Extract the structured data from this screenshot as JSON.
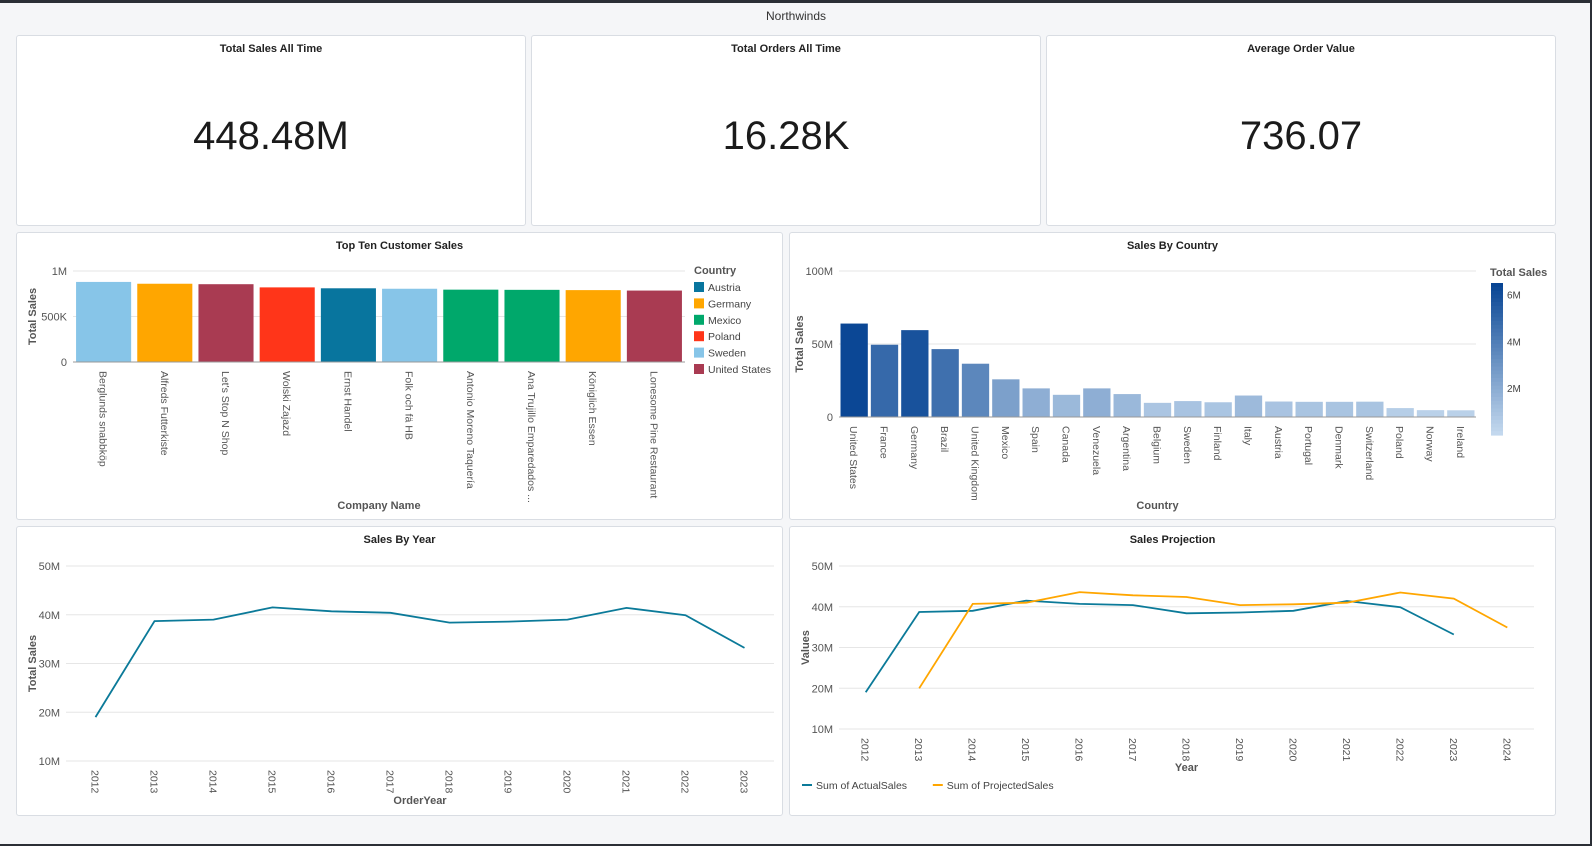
{
  "app_title": "Northwinds",
  "kpis": [
    {
      "title": "Total Sales All Time",
      "value": "448.48M"
    },
    {
      "title": "Total Orders All Time",
      "value": "16.28K"
    },
    {
      "title": "Average Order Value",
      "value": "736.07"
    }
  ],
  "chart_data": [
    {
      "type": "bar",
      "title": "Top Ten Customer Sales",
      "xlabel": "Company Name",
      "ylabel": "Total Sales",
      "ylim": [
        0,
        1000000
      ],
      "yticks": [
        {
          "v": 0,
          "label": "0"
        },
        {
          "v": 500000,
          "label": "500K"
        },
        {
          "v": 1000000,
          "label": "1M"
        }
      ],
      "categories": [
        "Berglunds snabbköp",
        "Alfreds Futterkiste",
        "Let's Stop N Shop",
        "Wolski Zajazd",
        "Ernst Handel",
        "Folk och fä HB",
        "Antonio Moreno Taquería",
        "Ana Trujillo Emparedados ...",
        "Königlich Essen",
        "Lonesome Pine Restaurant"
      ],
      "values": [
        880000,
        860000,
        855000,
        820000,
        810000,
        805000,
        795000,
        793000,
        790000,
        785000
      ],
      "countries": [
        "Sweden",
        "Germany",
        "United States",
        "Poland",
        "Austria",
        "Sweden",
        "Mexico",
        "Mexico",
        "Germany",
        "United States"
      ],
      "legend_title": "Country",
      "legend": [
        {
          "name": "Austria",
          "color": "#08759e"
        },
        {
          "name": "Germany",
          "color": "#ffa600"
        },
        {
          "name": "Mexico",
          "color": "#00a86b"
        },
        {
          "name": "Poland",
          "color": "#ff3519"
        },
        {
          "name": "Sweden",
          "color": "#87c5e8"
        },
        {
          "name": "United States",
          "color": "#a93b52"
        }
      ],
      "legend_placement": "right",
      "grid": true
    },
    {
      "type": "bar",
      "title": "Sales By Country",
      "xlabel": "Country",
      "ylabel": "Total Sales",
      "ylim": [
        0,
        100000000
      ],
      "yticks": [
        {
          "v": 0,
          "label": "0"
        },
        {
          "v": 50000000,
          "label": "50M"
        },
        {
          "v": 100000000,
          "label": "100M"
        }
      ],
      "categories": [
        "United States",
        "France",
        "Germany",
        "Brazil",
        "United Kingdom",
        "Mexico",
        "Spain",
        "Canada",
        "Venezuela",
        "Argentina",
        "Belgium",
        "Sweden",
        "Finland",
        "Italy",
        "Austria",
        "Portugal",
        "Denmark",
        "Switzerland",
        "Poland",
        "Norway",
        "Ireland"
      ],
      "values": [
        64000000,
        49500000,
        59500000,
        46500000,
        36500000,
        25800000,
        19600000,
        15200000,
        19600000,
        15700000,
        9700000,
        10900000,
        10100000,
        14700000,
        10600000,
        10400000,
        10400000,
        10500000,
        6100000,
        4700000,
        4600000
      ],
      "colorbar_title": "Total Sales",
      "colorbar_ticks": [
        {
          "v": 2000000,
          "label": "2M"
        },
        {
          "v": 4000000,
          "label": "4M"
        },
        {
          "v": 6000000,
          "label": "6M"
        }
      ],
      "colorbar_range": [
        0,
        6500000
      ],
      "grid": true
    },
    {
      "type": "line",
      "title": "Sales By Year",
      "xlabel": "OrderYear",
      "ylabel": "Total Sales",
      "ylim": [
        10000000,
        50000000
      ],
      "yticks": [
        {
          "v": 10000000,
          "label": "10M"
        },
        {
          "v": 20000000,
          "label": "20M"
        },
        {
          "v": 30000000,
          "label": "30M"
        },
        {
          "v": 40000000,
          "label": "40M"
        },
        {
          "v": 50000000,
          "label": "50M"
        }
      ],
      "x": [
        "2012",
        "2013",
        "2014",
        "2015",
        "2016",
        "2017",
        "2018",
        "2019",
        "2020",
        "2021",
        "2022",
        "2023"
      ],
      "series": [
        {
          "values": [
            19000000,
            38700000,
            39000000,
            41500000,
            40700000,
            40400000,
            38400000,
            38600000,
            39000000,
            41400000,
            39900000,
            33200000
          ],
          "color": "#0b7a99"
        }
      ],
      "grid": true
    },
    {
      "type": "line",
      "title": "Sales Projection",
      "xlabel": "Year",
      "ylabel": "Values",
      "ylim": [
        10000000,
        50000000
      ],
      "yticks": [
        {
          "v": 10000000,
          "label": "10M"
        },
        {
          "v": 20000000,
          "label": "20M"
        },
        {
          "v": 30000000,
          "label": "30M"
        },
        {
          "v": 40000000,
          "label": "40M"
        },
        {
          "v": 50000000,
          "label": "50M"
        }
      ],
      "x": [
        "2012",
        "2013",
        "2014",
        "2015",
        "2016",
        "2017",
        "2018",
        "2019",
        "2020",
        "2021",
        "2022",
        "2023",
        "2024"
      ],
      "series": [
        {
          "name": "Sum of ActualSales",
          "color": "#0b7a99",
          "values": [
            19000000,
            38700000,
            39000000,
            41500000,
            40700000,
            40400000,
            38400000,
            38600000,
            39000000,
            41400000,
            39900000,
            33200000,
            null
          ]
        },
        {
          "name": "Sum of ProjectedSales",
          "color": "#ffa600",
          "values": [
            null,
            20000000,
            40700000,
            41000000,
            43600000,
            42800000,
            42400000,
            40400000,
            40600000,
            41000000,
            43500000,
            42000000,
            34900000
          ]
        }
      ],
      "legend_placement": "bottom-left",
      "grid": true
    }
  ]
}
